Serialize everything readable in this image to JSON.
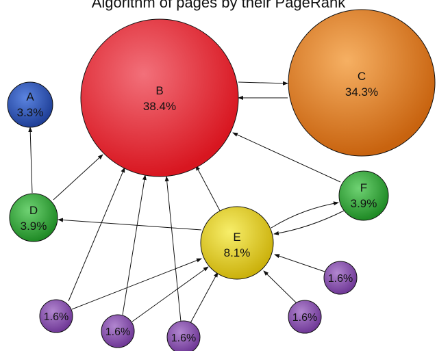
{
  "title": "Algorithm of pages by their PageRank",
  "nodes": {
    "A": {
      "name": "A",
      "value": "3.3%"
    },
    "B": {
      "name": "B",
      "value": "38.4%"
    },
    "C": {
      "name": "C",
      "value": "34.3%"
    },
    "D": {
      "name": "D",
      "value": "3.9%"
    },
    "E": {
      "name": "E",
      "value": "8.1%"
    },
    "F": {
      "name": "F",
      "value": "3.9%"
    },
    "p1": {
      "value": "1.6%"
    },
    "p2": {
      "value": "1.6%"
    },
    "p3": {
      "value": "1.6%"
    },
    "p4": {
      "value": "1.6%"
    },
    "p5": {
      "value": "1.6%"
    }
  },
  "colors": {
    "A": "#2e55b5",
    "B": "#e8202a",
    "C": "#d9731a",
    "D": "#2ea534",
    "E": "#e3cc15",
    "F": "#2ea534",
    "small": "#8c4db0"
  },
  "links": [
    [
      "B",
      "C"
    ],
    [
      "C",
      "B"
    ],
    [
      "D",
      "A"
    ],
    [
      "D",
      "B"
    ],
    [
      "E",
      "D"
    ],
    [
      "E",
      "B"
    ],
    [
      "E",
      "F"
    ],
    [
      "F",
      "E"
    ],
    [
      "F",
      "B"
    ],
    [
      "p1",
      "B"
    ],
    [
      "p1",
      "E"
    ],
    [
      "p2",
      "B"
    ],
    [
      "p2",
      "E"
    ],
    [
      "p3",
      "B"
    ],
    [
      "p3",
      "E"
    ],
    [
      "p4",
      "E"
    ],
    [
      "p5",
      "E"
    ]
  ]
}
